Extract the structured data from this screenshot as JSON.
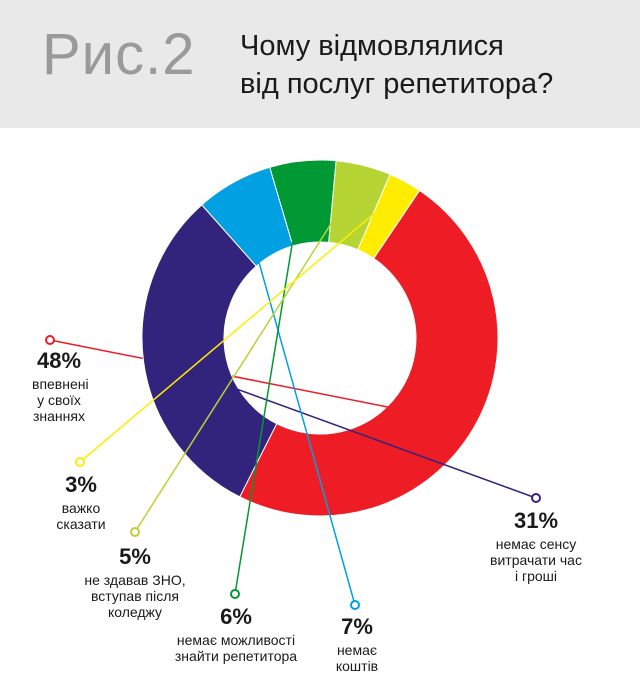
{
  "header": {
    "figure_label": "Рис.2",
    "title_line1": "Чому відмовлялися",
    "title_line2": "від послуг репетитора?"
  },
  "chart_data": {
    "type": "pie",
    "title": "Чому відмовлялися від послуг репетитора?",
    "donut": true,
    "slices": [
      {
        "value": 48,
        "label": "48%",
        "desc_lines": [
          "впевнені",
          "у своїх",
          "знаннях"
        ],
        "color": "#ee1c25"
      },
      {
        "value": 31,
        "label": "31%",
        "desc_lines": [
          "немає сенсу",
          "витрачати час",
          "і гроші"
        ],
        "color": "#32247d"
      },
      {
        "value": 7,
        "label": "7%",
        "desc_lines": [
          "немає",
          "коштів"
        ],
        "color": "#00a0e3"
      },
      {
        "value": 6,
        "label": "6%",
        "desc_lines": [
          "немає можливості",
          "знайти репетитора"
        ],
        "color": "#009933"
      },
      {
        "value": 5,
        "label": "5%",
        "desc_lines": [
          "не здавав ЗНО,",
          "вступав після",
          "коледжу"
        ],
        "color": "#b6d534"
      },
      {
        "value": 3,
        "label": "3%",
        "desc_lines": [
          "важко",
          "сказати"
        ],
        "color": "#ffed00"
      }
    ]
  }
}
